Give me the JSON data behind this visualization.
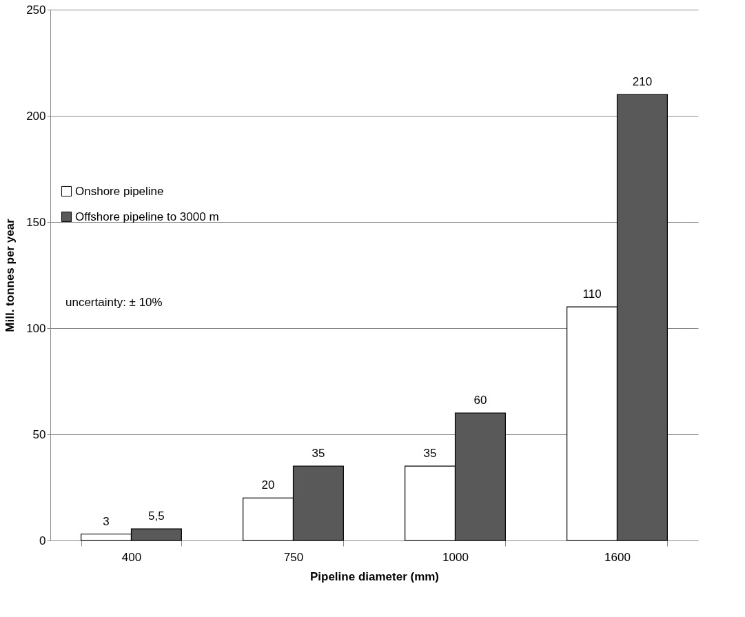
{
  "chart_data": {
    "type": "bar",
    "xlabel": "Pipeline diameter (mm)",
    "ylabel": "Mill. tonnes per year",
    "categories": [
      "400",
      "750",
      "1000",
      "1600"
    ],
    "series": [
      {
        "name": "Onshore pipeline",
        "color": "#ffffff",
        "values": [
          3,
          20,
          35,
          110
        ],
        "value_labels": [
          "3",
          "20",
          "35",
          "110"
        ]
      },
      {
        "name": "Offshore pipeline to 3000 m",
        "color": "#595959",
        "values": [
          5.5,
          35,
          60,
          210
        ],
        "value_labels": [
          "5,5",
          "35",
          "60",
          "210"
        ]
      }
    ],
    "ylim": [
      0,
      250
    ],
    "yticks": [
      0,
      50,
      100,
      150,
      200,
      250
    ],
    "grid": "y",
    "legend": "left",
    "annotations": [
      "uncertainty: ± 10%"
    ]
  }
}
